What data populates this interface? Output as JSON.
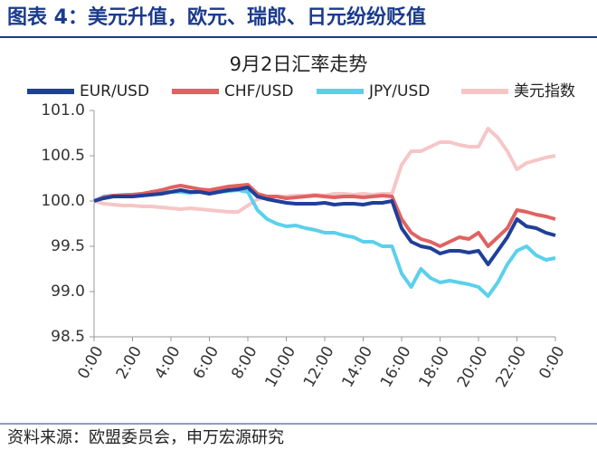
{
  "heading": "图表 4：美元升值，欧元、瑞郎、日元纷纷贬值",
  "source": "资料来源：欧盟委员会，申万宏源研究",
  "chart_data": {
    "type": "line",
    "title": "9月2日汇率走势",
    "categories": [
      "0:00",
      null,
      null,
      null,
      "2:00",
      null,
      null,
      null,
      "4:00",
      null,
      null,
      null,
      "6:00",
      null,
      null,
      null,
      "8:00",
      null,
      null,
      null,
      "10:00",
      null,
      null,
      null,
      "12:00",
      null,
      null,
      null,
      "14:00",
      null,
      null,
      null,
      "16:00",
      null,
      null,
      null,
      "18:00",
      null,
      null,
      null,
      "20:00",
      null,
      null,
      null,
      "22:00",
      null,
      null,
      null,
      "0:00"
    ],
    "ylim": [
      98.5,
      101.0
    ],
    "yticks": [
      98.5,
      {
        "value": 99,
        "label": "99.0"
      },
      99.5,
      {
        "value": 100,
        "label": "100.0"
      },
      100.5,
      {
        "value": 101,
        "label": "101.0"
      }
    ],
    "series": [
      {
        "name": "EUR/USD",
        "color": "#1f3f99",
        "values": [
          100.0,
          100.03,
          100.05,
          100.05,
          100.05,
          100.06,
          100.07,
          100.08,
          100.1,
          100.12,
          100.1,
          100.1,
          100.08,
          100.1,
          100.12,
          100.13,
          100.15,
          100.05,
          100.02,
          100.0,
          99.98,
          99.97,
          99.97,
          99.97,
          99.98,
          99.96,
          99.97,
          99.97,
          99.96,
          99.98,
          99.98,
          100.0,
          99.7,
          99.55,
          99.5,
          99.48,
          99.42,
          99.45,
          99.45,
          99.43,
          99.45,
          99.3,
          99.45,
          99.6,
          99.8,
          99.72,
          99.7,
          99.65,
          99.62
        ]
      },
      {
        "name": "CHF/USD",
        "color": "#e06262",
        "values": [
          100.0,
          100.04,
          100.06,
          100.06,
          100.07,
          100.08,
          100.1,
          100.12,
          100.15,
          100.17,
          100.15,
          100.13,
          100.12,
          100.14,
          100.16,
          100.17,
          100.18,
          100.08,
          100.05,
          100.05,
          100.03,
          100.04,
          100.05,
          100.06,
          100.05,
          100.04,
          100.05,
          100.05,
          100.04,
          100.05,
          100.06,
          100.05,
          99.8,
          99.65,
          99.58,
          99.55,
          99.5,
          99.55,
          99.6,
          99.58,
          99.65,
          99.5,
          99.6,
          99.7,
          99.9,
          99.88,
          99.85,
          99.83,
          99.8
        ]
      },
      {
        "name": "JPY/USD",
        "color": "#5bd0ec",
        "values": [
          100.0,
          100.05,
          100.06,
          100.07,
          100.07,
          100.08,
          100.08,
          100.1,
          100.1,
          100.1,
          100.09,
          100.1,
          100.1,
          100.1,
          100.11,
          100.12,
          100.1,
          99.9,
          99.8,
          99.75,
          99.72,
          99.73,
          99.7,
          99.68,
          99.65,
          99.65,
          99.62,
          99.6,
          99.55,
          99.55,
          99.5,
          99.5,
          99.2,
          99.05,
          99.25,
          99.15,
          99.1,
          99.12,
          99.1,
          99.08,
          99.05,
          98.95,
          99.1,
          99.3,
          99.45,
          99.5,
          99.4,
          99.35,
          99.37
        ]
      },
      {
        "name": "美元指数",
        "color": "#f6c6c6",
        "values": [
          100.0,
          99.97,
          99.96,
          99.95,
          99.95,
          99.94,
          99.94,
          99.93,
          99.92,
          99.91,
          99.92,
          99.91,
          99.9,
          99.89,
          99.88,
          99.88,
          99.95,
          100.02,
          100.04,
          100.05,
          100.05,
          100.06,
          100.06,
          100.07,
          100.06,
          100.08,
          100.08,
          100.07,
          100.08,
          100.07,
          100.08,
          100.08,
          100.4,
          100.55,
          100.55,
          100.6,
          100.65,
          100.65,
          100.62,
          100.6,
          100.6,
          100.8,
          100.7,
          100.55,
          100.35,
          100.42,
          100.45,
          100.48,
          100.5
        ]
      }
    ]
  }
}
